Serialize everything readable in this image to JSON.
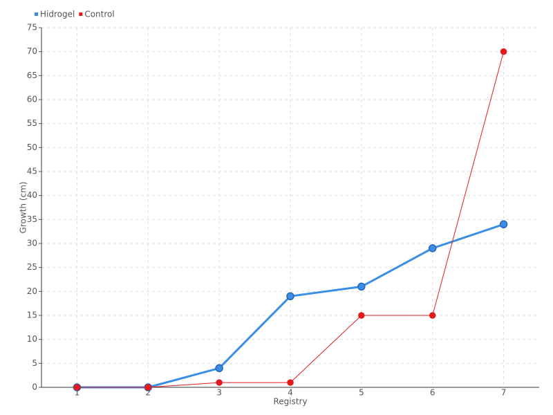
{
  "chart_data": {
    "type": "line",
    "x_label": "Registry",
    "y_label": "Growth (cm)",
    "categories": [
      "1",
      "2",
      "3",
      "4",
      "5",
      "6",
      "7"
    ],
    "series": [
      {
        "name": "Hidrogel",
        "color": "#3a8ee6",
        "values": [
          0,
          0,
          4,
          19,
          21,
          29,
          34
        ]
      },
      {
        "name": "Control",
        "color": "#e31a1c",
        "values": [
          0,
          0,
          1,
          1,
          15,
          15,
          70
        ]
      }
    ],
    "ylim": [
      0,
      75
    ],
    "yticks": [
      0,
      5,
      10,
      15,
      20,
      25,
      30,
      35,
      40,
      45,
      50,
      55,
      60,
      65,
      70,
      75
    ],
    "grid": true,
    "legend": "top-left"
  }
}
